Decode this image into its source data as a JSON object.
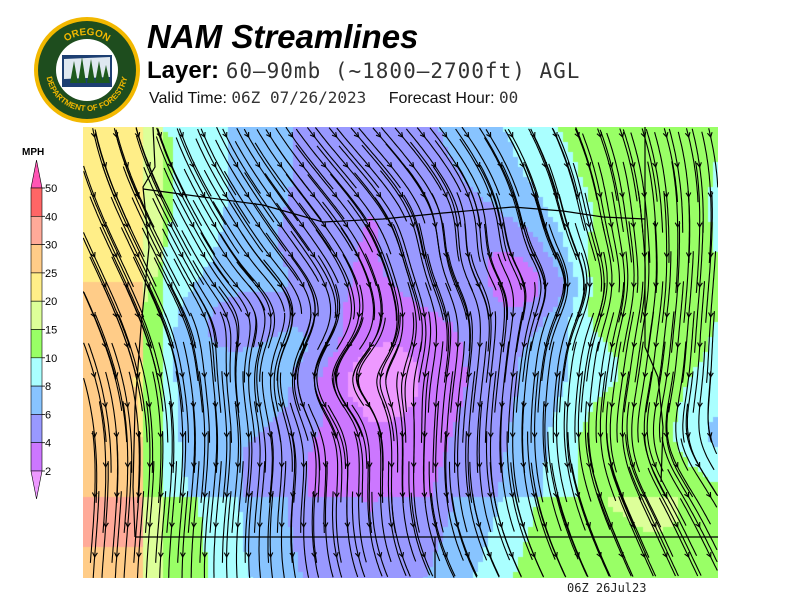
{
  "logo": {
    "top_text": "OREGON",
    "bottom_text": "DEPARTMENT OF FORESTRY"
  },
  "header": {
    "title": "NAM Streamlines",
    "layer_label": "Layer:",
    "layer_value": "60–90mb (~1800–2700ft) AGL",
    "valid_label": "Valid Time:",
    "valid_value": "06Z 07/26/2023",
    "forecast_label": "Forecast Hour:",
    "forecast_value": "00"
  },
  "colorbar": {
    "unit": "MPH",
    "levels": [
      "50",
      "40",
      "30",
      "25",
      "20",
      "15",
      "10",
      "8",
      "6",
      "4",
      "2"
    ],
    "colors": [
      "#ff55b4",
      "#ff6666",
      "#ffaa99",
      "#ffcc88",
      "#ffee88",
      "#ddff99",
      "#99ff66",
      "#aaffff",
      "#88c4ff",
      "#9999ff",
      "#cc77ff",
      "#ee99ff"
    ]
  },
  "map": {
    "field": "wind speed streamlines",
    "region": "Oregon"
  },
  "footer": {
    "timestamp": "06Z 26Jul23"
  }
}
